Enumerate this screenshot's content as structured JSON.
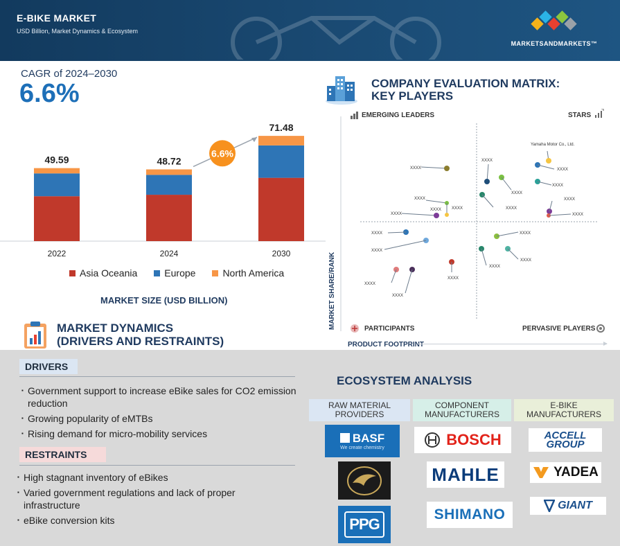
{
  "header": {
    "title": "E-BIKE MARKET",
    "subtitle": "USD Billion, Market Dynamics & Ecosystem",
    "brand": "MARKETSANDMARKETS™"
  },
  "market_size": {
    "cagr_label": "CAGR of 2024–2030",
    "cagr_value": "6.6%",
    "badge": "6.6%",
    "axis_title": "MARKET SIZE (USD BILLION)",
    "colors": {
      "asia": "#c0392b",
      "europe": "#2e75b6",
      "north_america": "#f79646",
      "badge": "#f7911e"
    }
  },
  "chart_data": {
    "type": "bar",
    "stacked": true,
    "categories": [
      "2022",
      "2024",
      "2030"
    ],
    "totals": [
      49.59,
      48.72,
      71.48
    ],
    "series": [
      {
        "name": "Asia Oceania",
        "values": [
          30.5,
          31.5,
          43.0
        ]
      },
      {
        "name": "Europe",
        "values": [
          15.5,
          13.5,
          22.0
        ]
      },
      {
        "name": "North America",
        "values": [
          3.59,
          3.72,
          6.48
        ]
      }
    ],
    "ylim": [
      0,
      80
    ],
    "grid": false,
    "legend": "bottom"
  },
  "matrix": {
    "title_line1": "COMPANY EVALUATION MATRIX:",
    "title_line2": "KEY PLAYERS",
    "q_emerging": "EMERGING LEADERS",
    "q_stars": "STARS",
    "q_participants": "PARTICIPANTS",
    "q_pervasive": "PERVASIVE PLAYERS",
    "y_label": "MARKET SHARE/RANK",
    "x_label": "PRODUCT FOOTPRINT",
    "named_player": "Yamaha Motor Co., Ltd.",
    "placeholder": "XXXX"
  },
  "dynamics": {
    "title_line1": "MARKET DYNAMICS",
    "title_line2": "(DRIVERS AND RESTRAINTS)",
    "drivers_head": "DRIVERS",
    "drivers": [
      "Government support to increase eBike sales for CO2 emission reduction",
      "Growing popularity of eMTBs",
      "Rising demand for micro-mobility services"
    ],
    "restraints_head": "RESTRAINTS",
    "restraints": [
      "High stagnant inventory of eBikes",
      "Varied government regulations and lack of proper infrastructure",
      "eBike conversion kits"
    ]
  },
  "ecosystem": {
    "title": "ECOSYSTEM ANALYSIS",
    "col1": "RAW MATERIAL PROVIDERS",
    "col2": "COMPONENT MANUFACTURERS",
    "col3": "E-BIKE MANUFACTURERS",
    "basf": "BASF",
    "basf_tag": "We create chemistry",
    "ppg": "PPG",
    "bosch": "BOSCH",
    "mahle": "MAHLE",
    "shimano": "SHIMANO",
    "accell": "ACCELL GROUP",
    "yadea": "YADEA",
    "giant": "GIANT"
  }
}
